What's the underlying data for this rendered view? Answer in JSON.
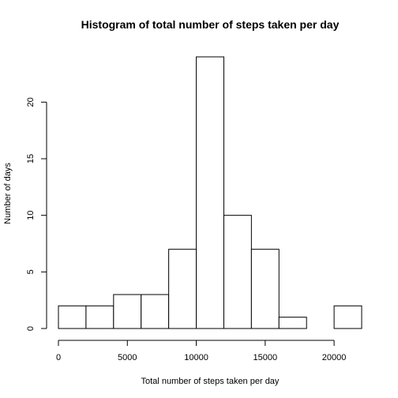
{
  "chart_data": {
    "type": "bar",
    "title": "Histogram of total number of steps taken per day",
    "xlabel": "Total number of steps taken per day",
    "ylabel": "Number of days",
    "bins": [
      {
        "start": 0,
        "end": 2000,
        "count": 2
      },
      {
        "start": 2000,
        "end": 4000,
        "count": 2
      },
      {
        "start": 4000,
        "end": 6000,
        "count": 3
      },
      {
        "start": 6000,
        "end": 8000,
        "count": 3
      },
      {
        "start": 8000,
        "end": 10000,
        "count": 7
      },
      {
        "start": 10000,
        "end": 12000,
        "count": 24
      },
      {
        "start": 12000,
        "end": 14000,
        "count": 10
      },
      {
        "start": 14000,
        "end": 16000,
        "count": 7
      },
      {
        "start": 16000,
        "end": 18000,
        "count": 1
      },
      {
        "start": 18000,
        "end": 20000,
        "count": 0
      },
      {
        "start": 20000,
        "end": 22000,
        "count": 2
      }
    ],
    "xlim": [
      0,
      22000
    ],
    "ylim": [
      0,
      24
    ],
    "x_ticks": [
      0,
      5000,
      10000,
      15000,
      20000
    ],
    "y_ticks": [
      0,
      5,
      10,
      15,
      20
    ],
    "grid": false,
    "legend": "none"
  }
}
